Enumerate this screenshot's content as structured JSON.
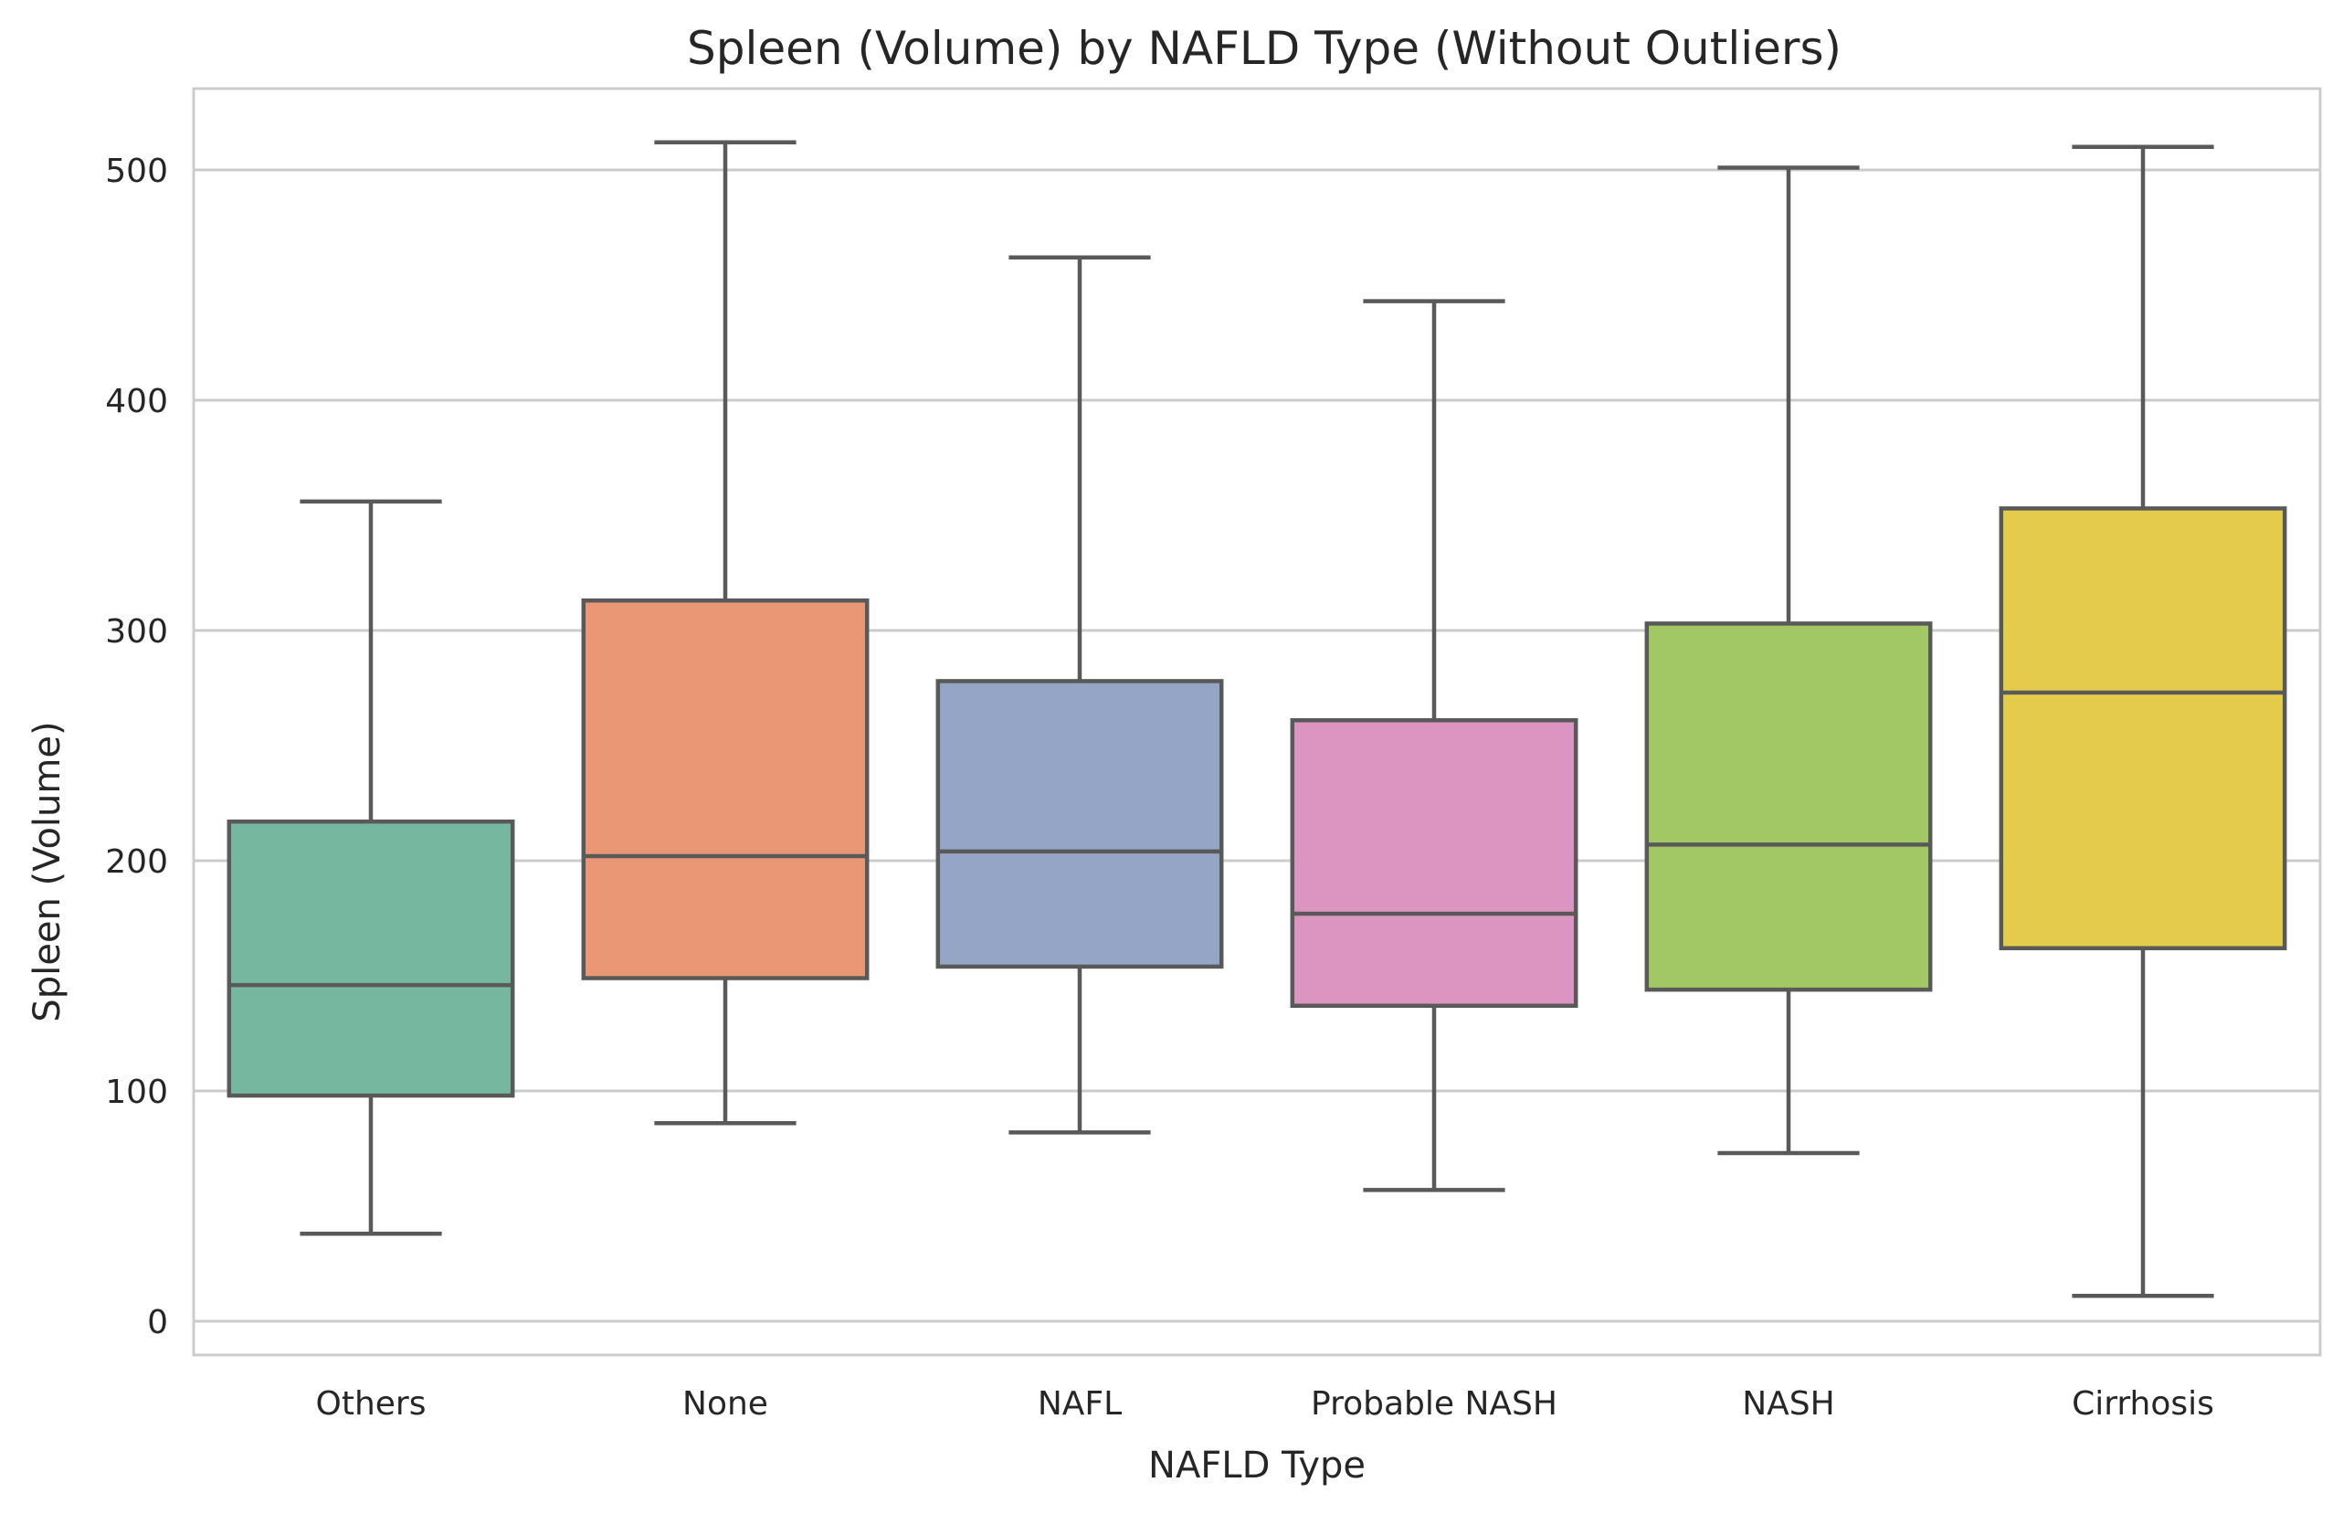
{
  "chart_data": {
    "type": "box",
    "title": "Spleen (Volume) by NAFLD Type (Without Outliers)",
    "xlabel": "NAFLD Type",
    "ylabel": "Spleen (Volume)",
    "categories": [
      "Others",
      "None",
      "NAFL",
      "Probable NASH",
      "NASH",
      "Cirrhosis"
    ],
    "boxes": [
      {
        "category": "Others",
        "whisker_low": 38,
        "q1": 98,
        "median": 146,
        "q3": 217,
        "whisker_high": 356,
        "color": "#76b7a0"
      },
      {
        "category": "None",
        "whisker_low": 86,
        "q1": 149,
        "median": 202,
        "q3": 313,
        "whisker_high": 512,
        "color": "#ea9775"
      },
      {
        "category": "NAFL",
        "whisker_low": 82,
        "q1": 154,
        "median": 204,
        "q3": 278,
        "whisker_high": 462,
        "color": "#94a5c5"
      },
      {
        "category": "Probable NASH",
        "whisker_low": 57,
        "q1": 137,
        "median": 177,
        "q3": 261,
        "whisker_high": 443,
        "color": "#dc95c1"
      },
      {
        "category": "NASH",
        "whisker_low": 73,
        "q1": 144,
        "median": 207,
        "q3": 303,
        "whisker_high": 501,
        "color": "#a2c865"
      },
      {
        "category": "Cirrhosis",
        "whisker_low": 11,
        "q1": 162,
        "median": 273,
        "q3": 353,
        "whisker_high": 510,
        "color": "#e4cb4c"
      }
    ],
    "yticks": [
      0,
      100,
      200,
      300,
      400,
      500
    ],
    "ylim": [
      -15,
      537
    ],
    "grid": true,
    "line_color": "#595959"
  }
}
